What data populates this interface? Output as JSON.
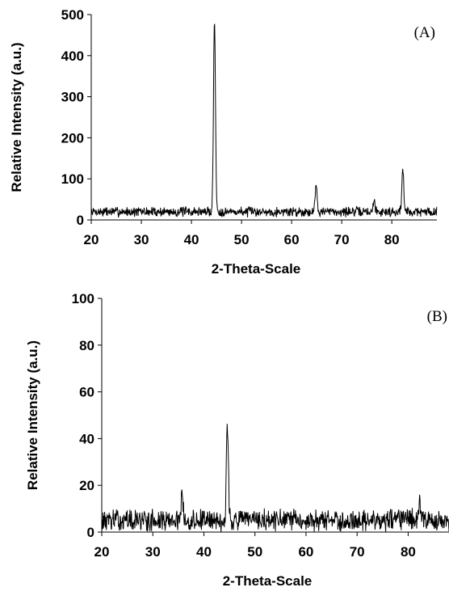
{
  "chart_data": [
    {
      "type": "line",
      "panel_label": "(A)",
      "xlabel": "2-Theta-Scale",
      "ylabel": "Relative Intensity (a.u.)",
      "xlim": [
        20,
        89
      ],
      "ylim": [
        0,
        500
      ],
      "xticks": [
        20,
        30,
        40,
        50,
        60,
        70,
        80
      ],
      "yticks": [
        0,
        100,
        200,
        300,
        400,
        500
      ],
      "grid": false,
      "line_color": "#000000",
      "baseline": 20,
      "noise": 18,
      "seed": 7,
      "peaks": [
        {
          "x": 44.6,
          "y": 485
        },
        {
          "x": 64.9,
          "y": 85
        },
        {
          "x": 82.2,
          "y": 120
        },
        {
          "x": 76.5,
          "y": 45
        }
      ]
    },
    {
      "type": "line",
      "panel_label": "(B)",
      "xlabel": "2-Theta-Scale",
      "ylabel": "Relative Intensity (a.u.)",
      "xlim": [
        20,
        88
      ],
      "ylim": [
        0,
        100
      ],
      "xticks": [
        20,
        30,
        40,
        50,
        60,
        70,
        80
      ],
      "yticks": [
        0,
        20,
        40,
        60,
        80,
        100
      ],
      "grid": false,
      "line_color": "#000000",
      "baseline": 5,
      "noise": 7,
      "seed": 13,
      "peaks": [
        {
          "x": 44.6,
          "y": 45
        },
        {
          "x": 35.7,
          "y": 16
        },
        {
          "x": 82.3,
          "y": 14
        }
      ]
    }
  ]
}
